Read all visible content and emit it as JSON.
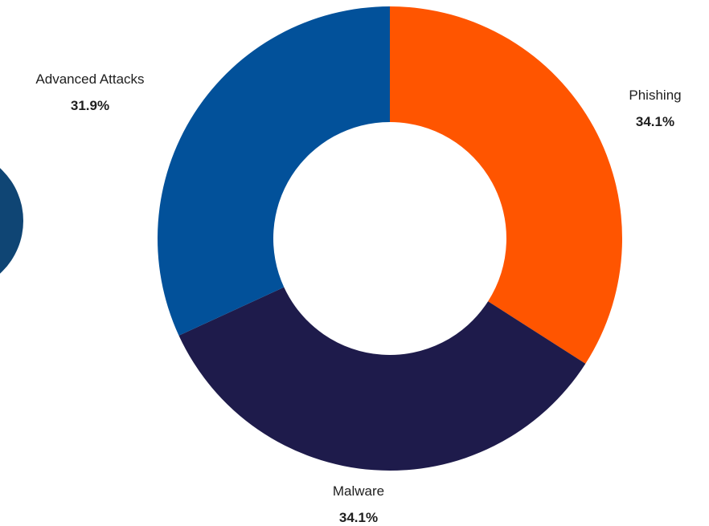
{
  "chart_data": {
    "type": "pie",
    "variant": "donut",
    "legend": "none",
    "slices": [
      {
        "label": "Phishing",
        "percent_label": "34.1%",
        "value": 34.1,
        "color": "#FF5500"
      },
      {
        "label": "Malware",
        "percent_label": "34.1%",
        "value": 34.1,
        "color": "#1E1B4B"
      },
      {
        "label": "Advanced Attacks",
        "percent_label": "31.9%",
        "value": 31.9,
        "color": "#02519A"
      }
    ],
    "partial_chart_left": {
      "color": "#0F4574"
    }
  }
}
